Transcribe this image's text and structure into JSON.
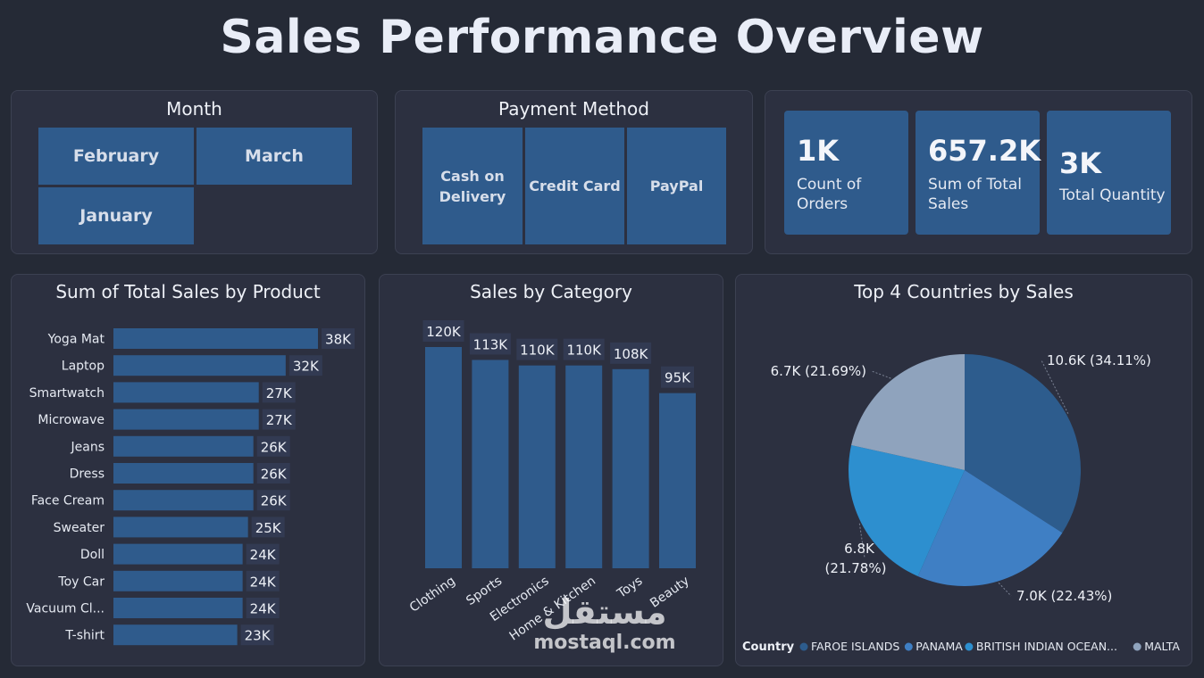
{
  "header": {
    "title": "Sales Performance Overview"
  },
  "filters": {
    "month": {
      "title": "Month",
      "options": [
        "February",
        "March",
        "January"
      ]
    },
    "payment": {
      "title": "Payment Method",
      "options": [
        "Cash on Delivery",
        "Credit Card",
        "PayPal"
      ]
    }
  },
  "kpis": [
    {
      "value": "1K",
      "label": "Count of Orders"
    },
    {
      "value": "657.2K",
      "label": "Sum of Total Sales"
    },
    {
      "value": "3K",
      "label": "Total Quantity"
    }
  ],
  "watermark": {
    "arabic": "مستقل",
    "latin": "mostaql.com"
  },
  "colors": {
    "bar": "#2f5b8c",
    "label_bg": "#323a52",
    "pie": [
      "#2d5c8d",
      "#3f7fc4",
      "#2d8fcf",
      "#8fa3bd"
    ]
  },
  "chart_data": [
    {
      "type": "bar",
      "orientation": "horizontal",
      "title": "Sum of Total Sales by Product",
      "categories": [
        "Yoga Mat",
        "Laptop",
        "Smartwatch",
        "Microwave",
        "Jeans",
        "Dress",
        "Face Cream",
        "Sweater",
        "Doll",
        "Toy Car",
        "Vacuum Cl...",
        "T-shirt"
      ],
      "values": [
        38000,
        32000,
        27000,
        27000,
        26000,
        26000,
        26000,
        25000,
        24000,
        24000,
        24000,
        23000
      ],
      "value_labels": [
        "38K",
        "32K",
        "27K",
        "27K",
        "26K",
        "26K",
        "26K",
        "25K",
        "24K",
        "24K",
        "24K",
        "23K"
      ]
    },
    {
      "type": "bar",
      "orientation": "vertical",
      "title": "Sales by Category",
      "categories": [
        "Clothing",
        "Sports",
        "Electronics",
        "Home & Kitchen",
        "Toys",
        "Beauty"
      ],
      "values": [
        120000,
        113000,
        110000,
        110000,
        108000,
        95000
      ],
      "value_labels": [
        "120K",
        "113K",
        "110K",
        "110K",
        "108K",
        "95K"
      ]
    },
    {
      "type": "pie",
      "title": "Top 4 Countries by Sales",
      "legend_title": "Country",
      "legend_position": "bottom",
      "slices": [
        {
          "name": "FAROE ISLANDS",
          "value": 10600,
          "label": "10.6K (34.11%)"
        },
        {
          "name": "PANAMA",
          "value": 7000,
          "label": "7.0K (22.43%)"
        },
        {
          "name": "BRITISH INDIAN OCEAN...",
          "value": 6800,
          "label": "6.8K (21.78%)"
        },
        {
          "name": "MALTA",
          "value": 6700,
          "label": "6.7K (21.69%)"
        }
      ]
    }
  ]
}
